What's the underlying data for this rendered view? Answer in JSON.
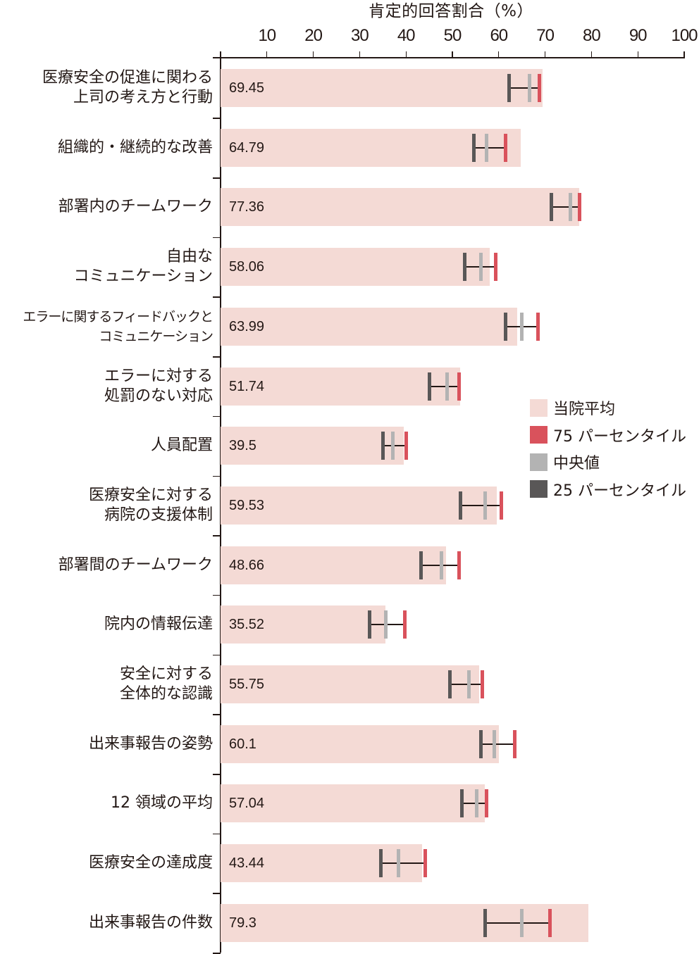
{
  "chart_data": {
    "type": "bar",
    "orientation": "horizontal",
    "title": "肯定的回答割合（%）",
    "xlabel": "肯定的回答割合（%）",
    "ylabel": "",
    "xlim": [
      0,
      100
    ],
    "x_ticks": [
      10,
      20,
      30,
      40,
      50,
      60,
      70,
      80,
      90,
      100
    ],
    "grid": false,
    "legend_position": "right-middle",
    "categories": [
      "医療安全の促進に関わる\n上司の考え方と行動",
      "組織的・継続的な改善",
      "部署内のチームワーク",
      "自由な\nコミュニケーション",
      "エラーに関するフィードバックと\nコミュニケーション",
      "エラーに対する\n処罰のない対応",
      "人員配置",
      "医療安全に対する\n病院の支援体制",
      "部署間のチームワーク",
      "院内の情報伝達",
      "安全に対する\n全体的な認識",
      "出来事報告の姿勢",
      "12 領域の平均",
      "医療安全の達成度",
      "出来事報告の件数"
    ],
    "series": [
      {
        "name": "当院平均",
        "type": "bar",
        "color": "#F4DAD5",
        "values": [
          69.45,
          64.79,
          77.36,
          58.06,
          63.99,
          51.74,
          39.5,
          59.53,
          48.66,
          35.52,
          55.75,
          60.1,
          57.04,
          43.44,
          79.3
        ]
      },
      {
        "name": "75 パーセンタイル",
        "type": "marker",
        "color": "#D9525C",
        "values": [
          68.8,
          61.4,
          77.5,
          59.4,
          68.4,
          51.5,
          40.0,
          60.5,
          51.4,
          39.7,
          56.5,
          63.5,
          57.4,
          44.2,
          71.1
        ]
      },
      {
        "name": "中央値",
        "type": "marker",
        "color": "#B3B3B3",
        "values": [
          66.7,
          57.4,
          75.4,
          56.2,
          64.9,
          48.9,
          37.1,
          57.0,
          47.7,
          35.6,
          53.5,
          59.0,
          55.3,
          38.4,
          64.9
        ]
      },
      {
        "name": "25 パーセンタイル",
        "type": "marker",
        "color": "#595757",
        "values": [
          62.3,
          54.6,
          71.3,
          52.6,
          61.5,
          45.0,
          35.0,
          51.8,
          43.2,
          32.1,
          49.4,
          56.2,
          52.1,
          34.5,
          57.1
        ]
      }
    ],
    "value_labels": [
      "69.45",
      "64.79",
      "77.36",
      "58.06",
      "63.99",
      "51.74",
      "39.5",
      "59.53",
      "48.66",
      "35.52",
      "55.75",
      "60.1",
      "57.04",
      "43.44",
      "79.3"
    ]
  },
  "legend": [
    {
      "label": "当院平均",
      "color": "#F4DAD5"
    },
    {
      "label": "75 パーセンタイル",
      "color": "#D9525C"
    },
    {
      "label": "中央値",
      "color": "#B3B3B3"
    },
    {
      "label": "25 パーセンタイル",
      "color": "#595757"
    }
  ]
}
